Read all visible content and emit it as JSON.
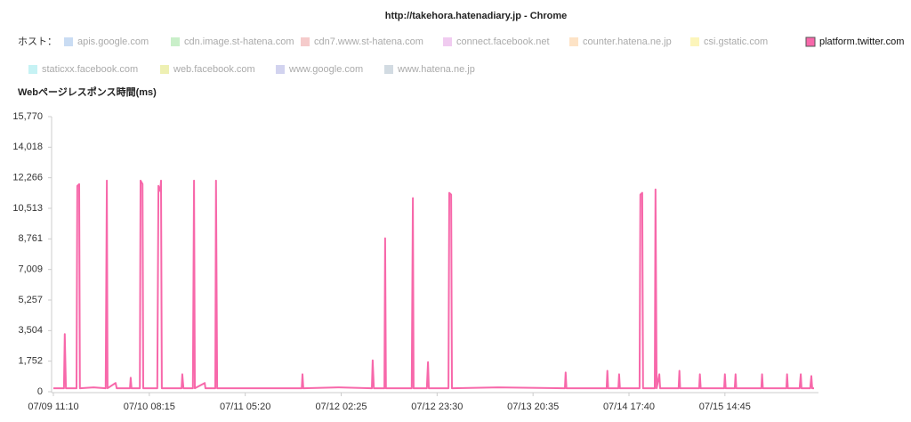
{
  "chart_data": {
    "type": "line",
    "title": "http://takehora.hatenadiary.jp - Chrome",
    "legend_label": "ホスト：",
    "y_label": "Webページレスポンス時間(ms)",
    "series": [
      {
        "name": "apis.google.com",
        "color": "#c9dcf3",
        "hidden": true
      },
      {
        "name": "cdn.image.st-hatena.com",
        "color": "#c9efc9",
        "hidden": true
      },
      {
        "name": "cdn7.www.st-hatena.com",
        "color": "#f5cbcb",
        "hidden": true
      },
      {
        "name": "connect.facebook.net",
        "color": "#f0cbf0",
        "hidden": true
      },
      {
        "name": "counter.hatena.ne.jp",
        "color": "#fde3c6",
        "hidden": true
      },
      {
        "name": "csi.gstatic.com",
        "color": "#fcf5bb",
        "hidden": true
      },
      {
        "name": "platform.twitter.com",
        "color": "#f768aa",
        "values": [
          200,
          200,
          3300,
          200,
          200,
          11800,
          11900,
          200,
          250,
          200,
          12100,
          200,
          500,
          200,
          200,
          800,
          200,
          200,
          12100,
          11900,
          200,
          200,
          11800,
          11500,
          12100,
          200,
          200,
          1000,
          200,
          200,
          12100,
          200,
          500,
          200,
          200,
          12100,
          200,
          200,
          200,
          1000,
          200,
          250,
          200,
          1800,
          200,
          200,
          8800,
          200,
          200,
          11100,
          200,
          200,
          1700,
          200,
          200,
          11400,
          11300,
          200,
          250,
          200,
          1100,
          200,
          200,
          1200,
          200,
          200,
          1000,
          200,
          200,
          11300,
          11400,
          200,
          200,
          11600,
          200,
          1000,
          200,
          200,
          1200,
          200,
          200,
          1000,
          200,
          200,
          1000,
          200,
          200,
          1000,
          200,
          200,
          1000,
          200,
          200,
          1000,
          200,
          200,
          1000,
          200,
          200,
          900,
          200,
          200
        ]
      },
      {
        "name": "staticxx.facebook.com",
        "color": "#c6f2f4",
        "hidden": true
      },
      {
        "name": "web.facebook.com",
        "color": "#eef0b3",
        "hidden": true
      },
      {
        "name": "www.google.com",
        "color": "#d2d3ef",
        "hidden": true
      },
      {
        "name": "www.hatena.ne.jp",
        "color": "#d2dbe2",
        "hidden": true
      }
    ],
    "x": [
      "07/09 11:10",
      "07/09 13:30",
      "07/09 13:40",
      "07/09 13:55",
      "07/09 16:15",
      "07/09 16:25",
      "07/09 16:50",
      "07/09 17:00",
      "07/09 20:00",
      "07/09 22:40",
      "07/09 22:55",
      "07/09 23:05",
      "07/10 00:50",
      "07/10 01:05",
      "07/10 04:00",
      "07/10 04:10",
      "07/10 04:20",
      "07/10 06:10",
      "07/10 06:20",
      "07/10 06:45",
      "07/10 06:55",
      "07/10 10:00",
      "07/10 10:15",
      "07/10 10:40",
      "07/10 10:50",
      "07/10 11:00",
      "07/10 15:20",
      "07/10 15:30",
      "07/10 15:45",
      "07/10 17:50",
      "07/10 18:05",
      "07/10 18:15",
      "07/10 20:25",
      "07/10 20:35",
      "07/10 22:45",
      "07/10 22:55",
      "07/10 23:10",
      "07/11 08:10",
      "07/11 17:45",
      "07/11 17:55",
      "07/11 18:05",
      "07/12 01:45",
      "07/12 09:10",
      "07/12 09:20",
      "07/12 09:35",
      "07/12 11:55",
      "07/12 12:05",
      "07/12 12:15",
      "07/12 17:55",
      "07/12 18:10",
      "07/12 18:20",
      "07/12 21:15",
      "07/12 21:30",
      "07/12 21:40",
      "07/13 02:00",
      "07/13 02:10",
      "07/13 02:35",
      "07/13 02:45",
      "07/13 12:55",
      "07/14 03:35",
      "07/14 03:45",
      "07/14 03:55",
      "07/14 12:45",
      "07/14 12:55",
      "07/14 13:05",
      "07/14 15:20",
      "07/14 15:30",
      "07/14 15:40",
      "07/14 20:00",
      "07/14 20:10",
      "07/14 20:35",
      "07/14 20:45",
      "07/14 23:20",
      "07/14 23:30",
      "07/14 23:45",
      "07/15 00:20",
      "07/15 00:30",
      "07/15 04:35",
      "07/15 04:45",
      "07/15 04:55",
      "07/15 09:05",
      "07/15 09:15",
      "07/15 09:25",
      "07/15 14:35",
      "07/15 14:45",
      "07/15 14:55",
      "07/15 16:55",
      "07/15 17:05",
      "07/15 17:15",
      "07/15 22:45",
      "07/15 22:55",
      "07/15 23:05",
      "07/16 04:15",
      "07/16 04:25",
      "07/16 04:35",
      "07/16 07:10",
      "07/16 07:25",
      "07/16 07:35",
      "07/16 09:30",
      "07/16 09:45",
      "07/16 09:55",
      "07/16 10:20"
    ],
    "xlim": [
      "07/09 11:10",
      "07/16 10:20"
    ],
    "xticks": [
      "07/09 11:10",
      "07/10 08:15",
      "07/11 05:20",
      "07/12 02:25",
      "07/12 23:30",
      "07/13 20:35",
      "07/14 17:40",
      "07/15 14:45"
    ],
    "ylim": [
      0,
      15770
    ],
    "yticks": [
      0,
      {
        "value": 1752,
        "label": "1,752"
      },
      {
        "value": 3504,
        "label": "3,504"
      },
      {
        "value": 5257,
        "label": "5,257"
      },
      {
        "value": 7009,
        "label": "7,009"
      },
      {
        "value": 8761,
        "label": "8,761"
      },
      {
        "value": 10513,
        "label": "10,513"
      },
      {
        "value": 12266,
        "label": "12,266"
      },
      {
        "value": 14018,
        "label": "14,018"
      },
      {
        "value": 15770,
        "label": "15,770"
      }
    ]
  }
}
